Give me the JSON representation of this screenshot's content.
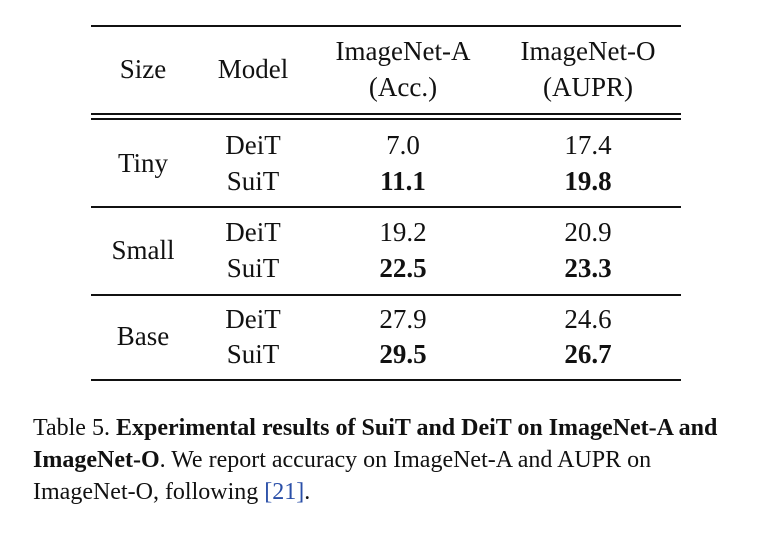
{
  "table": {
    "headers": {
      "size": "Size",
      "model": "Model",
      "imagenet_a_line1": "ImageNet-A",
      "imagenet_a_line2": "(Acc.)",
      "imagenet_o_line1": "ImageNet-O",
      "imagenet_o_line2": "(AUPR)"
    },
    "groups": [
      {
        "size": "Tiny",
        "rows": [
          {
            "model": "DeiT",
            "imagenet_a": "7.0",
            "imagenet_o": "17.4"
          },
          {
            "model": "SuiT",
            "imagenet_a": "11.1",
            "imagenet_o": "19.8"
          }
        ]
      },
      {
        "size": "Small",
        "rows": [
          {
            "model": "DeiT",
            "imagenet_a": "19.2",
            "imagenet_o": "20.9"
          },
          {
            "model": "SuiT",
            "imagenet_a": "22.5",
            "imagenet_o": "23.3"
          }
        ]
      },
      {
        "size": "Base",
        "rows": [
          {
            "model": "DeiT",
            "imagenet_a": "27.9",
            "imagenet_o": "24.6"
          },
          {
            "model": "SuiT",
            "imagenet_a": "29.5",
            "imagenet_o": "26.7"
          }
        ]
      }
    ]
  },
  "caption": {
    "label": "Table 5.",
    "bold_text": "Experimental results of SuiT and DeiT on ImageNet-A and ImageNet-O",
    "text_after": ". We report accuracy on ImageNet-A and AUPR on ImageNet-O, following ",
    "citation": "[21]",
    "end": "."
  }
}
